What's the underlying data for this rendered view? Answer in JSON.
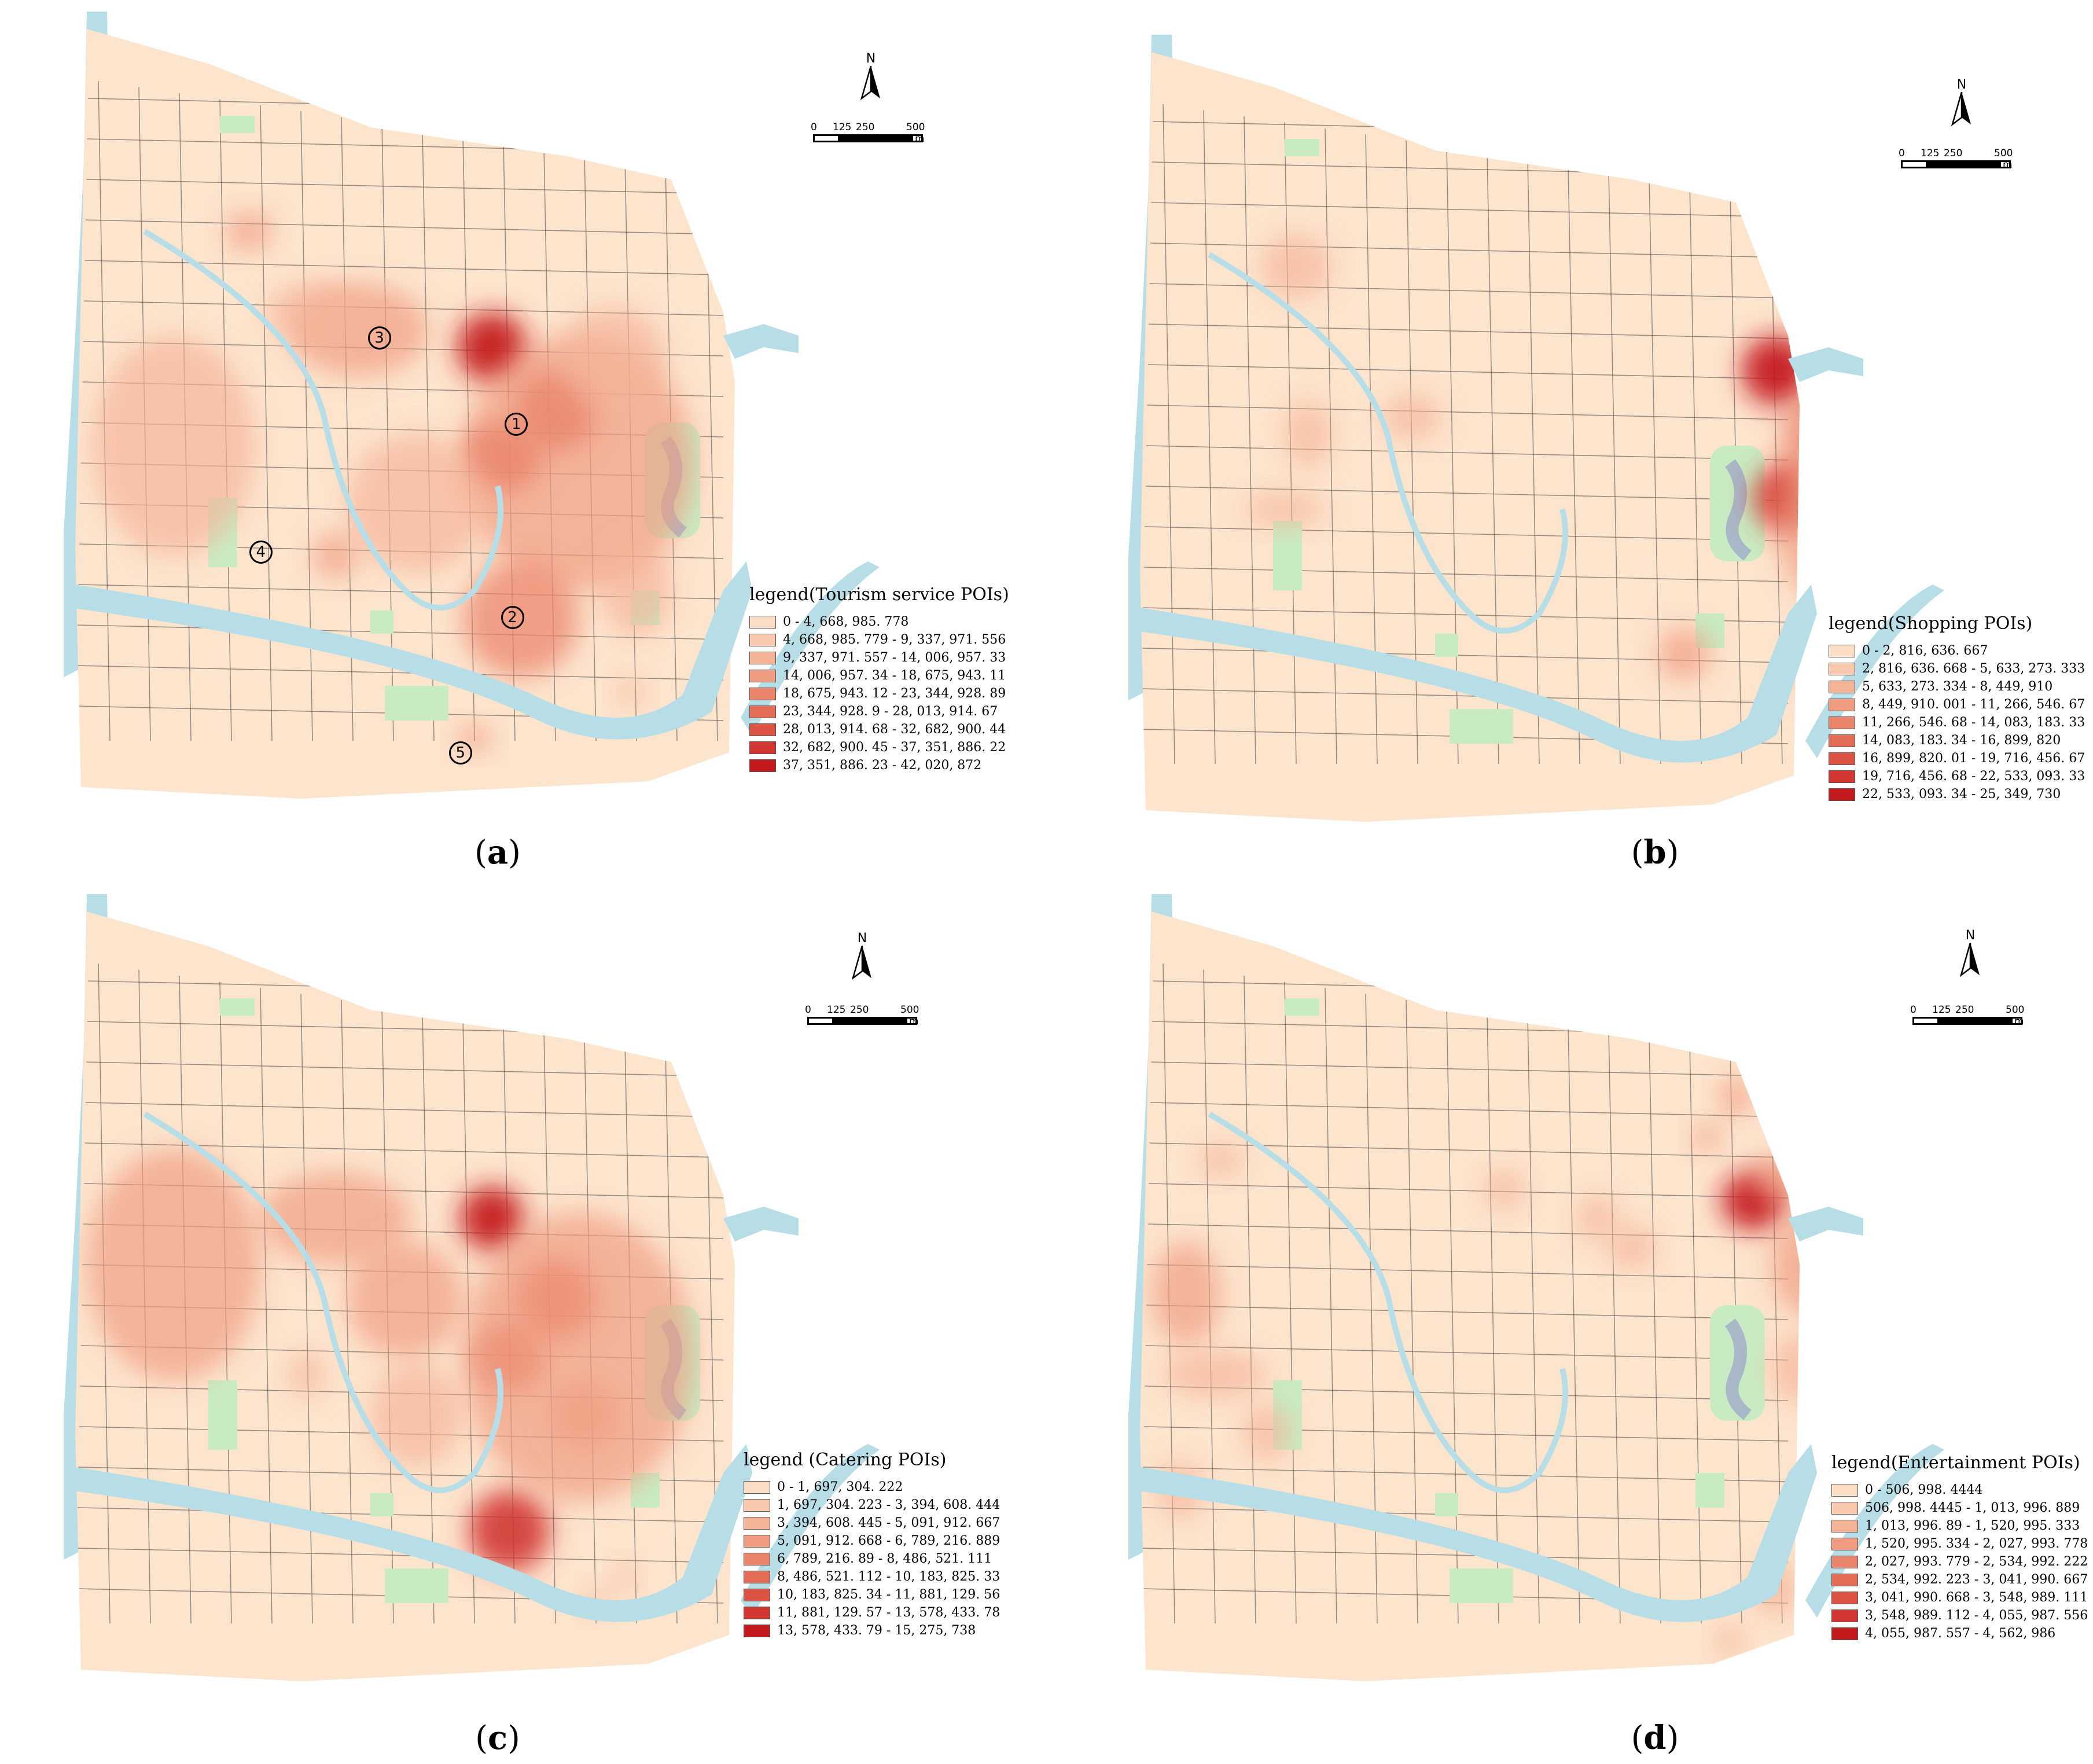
{
  "panels": [
    {
      "id": "a",
      "caption_letter": "a",
      "north_label": "N",
      "scale": {
        "ticks": [
          "0",
          "125",
          "250",
          "500"
        ],
        "unit": "m"
      },
      "legend_title": "legend(Tourism service POIs)",
      "legend_classes": [
        "0 - 4, 668, 985. 778",
        "4, 668, 985. 779 - 9, 337, 971. 556",
        "9, 337, 971. 557 - 14, 006, 957. 33",
        "14, 006, 957. 34 - 18, 675, 943. 11",
        "18, 675, 943. 12 - 23, 344, 928. 89",
        "23, 344, 928. 9 - 28, 013, 914. 67",
        "28, 013, 914. 68 - 32, 682, 900. 44",
        "32, 682, 900. 45 - 37, 351, 886. 22",
        "37, 351, 886. 23 - 42, 020, 872"
      ],
      "markers": [
        "1",
        "2",
        "3",
        "4",
        "5"
      ]
    },
    {
      "id": "b",
      "caption_letter": "b",
      "north_label": "N",
      "scale": {
        "ticks": [
          "0",
          "125",
          "250",
          "500"
        ],
        "unit": "m"
      },
      "legend_title": "legend(Shopping POIs)",
      "legend_classes": [
        "0 - 2, 816, 636. 667",
        "2, 816, 636. 668 - 5, 633, 273. 333",
        "5, 633, 273. 334 - 8, 449, 910",
        "8, 449, 910. 001 - 11, 266, 546. 67",
        "11, 266, 546. 68 - 14, 083, 183. 33",
        "14, 083, 183. 34 - 16, 899, 820",
        "16, 899, 820. 01 - 19, 716, 456. 67",
        "19, 716, 456. 68 - 22, 533, 093. 33",
        "22, 533, 093. 34 - 25, 349, 730"
      ],
      "markers": []
    },
    {
      "id": "c",
      "caption_letter": "c",
      "north_label": "N",
      "scale": {
        "ticks": [
          "0",
          "125",
          "250",
          "500"
        ],
        "unit": "m"
      },
      "legend_title": "legend (Catering POIs)",
      "legend_classes": [
        "0 - 1, 697, 304. 222",
        "1, 697, 304. 223 - 3, 394, 608. 444",
        "3, 394, 608. 445 - 5, 091, 912. 667",
        "5, 091, 912. 668 - 6, 789, 216. 889",
        "6, 789, 216. 89 - 8, 486, 521. 111",
        "8, 486, 521. 112 - 10, 183, 825. 33",
        "10, 183, 825. 34 - 11, 881, 129. 56",
        "11, 881, 129. 57 - 13, 578, 433. 78",
        "13, 578, 433. 79 - 15, 275, 738"
      ],
      "markers": []
    },
    {
      "id": "d",
      "caption_letter": "d",
      "north_label": "N",
      "scale": {
        "ticks": [
          "0",
          "125",
          "250",
          "500"
        ],
        "unit": "m"
      },
      "legend_title": "legend(Entertainment POIs)",
      "legend_classes": [
        "0 - 506, 998. 4444",
        "506, 998. 4445 - 1, 013, 996. 889",
        "1, 013, 996. 89 - 1, 520, 995. 333",
        "1, 520, 995. 334 - 2, 027, 993. 778",
        "2, 027, 993. 779 - 2, 534, 992. 222",
        "2, 534, 992. 223 - 3, 041, 990. 667",
        "3, 041, 990. 668 - 3, 548, 989. 111",
        "3, 548, 989. 112 - 4, 055, 987. 556",
        "4, 055, 987. 557 - 4, 562, 986"
      ],
      "markers": []
    }
  ],
  "legend_colors": [
    "#fbdcc4",
    "#f8c9ae",
    "#f4b397",
    "#ef9c80",
    "#ea846b",
    "#e46c57",
    "#dc5243",
    "#d13632",
    "#c41a1e"
  ],
  "map_colors": {
    "land": "#fde4cd",
    "water": "#b7dde6",
    "park": "#c9ebc3",
    "pond": "#a9b8c6",
    "road": "#555555"
  },
  "heat_levels": {
    "a": [
      {
        "intensity": 1.0
      },
      {
        "intensity": 0.75
      },
      {
        "intensity": 0.8
      },
      {
        "intensity": 0.5
      },
      {
        "intensity": 0.45
      },
      {
        "intensity": 0.4
      },
      {
        "intensity": 0.35
      }
    ]
  }
}
